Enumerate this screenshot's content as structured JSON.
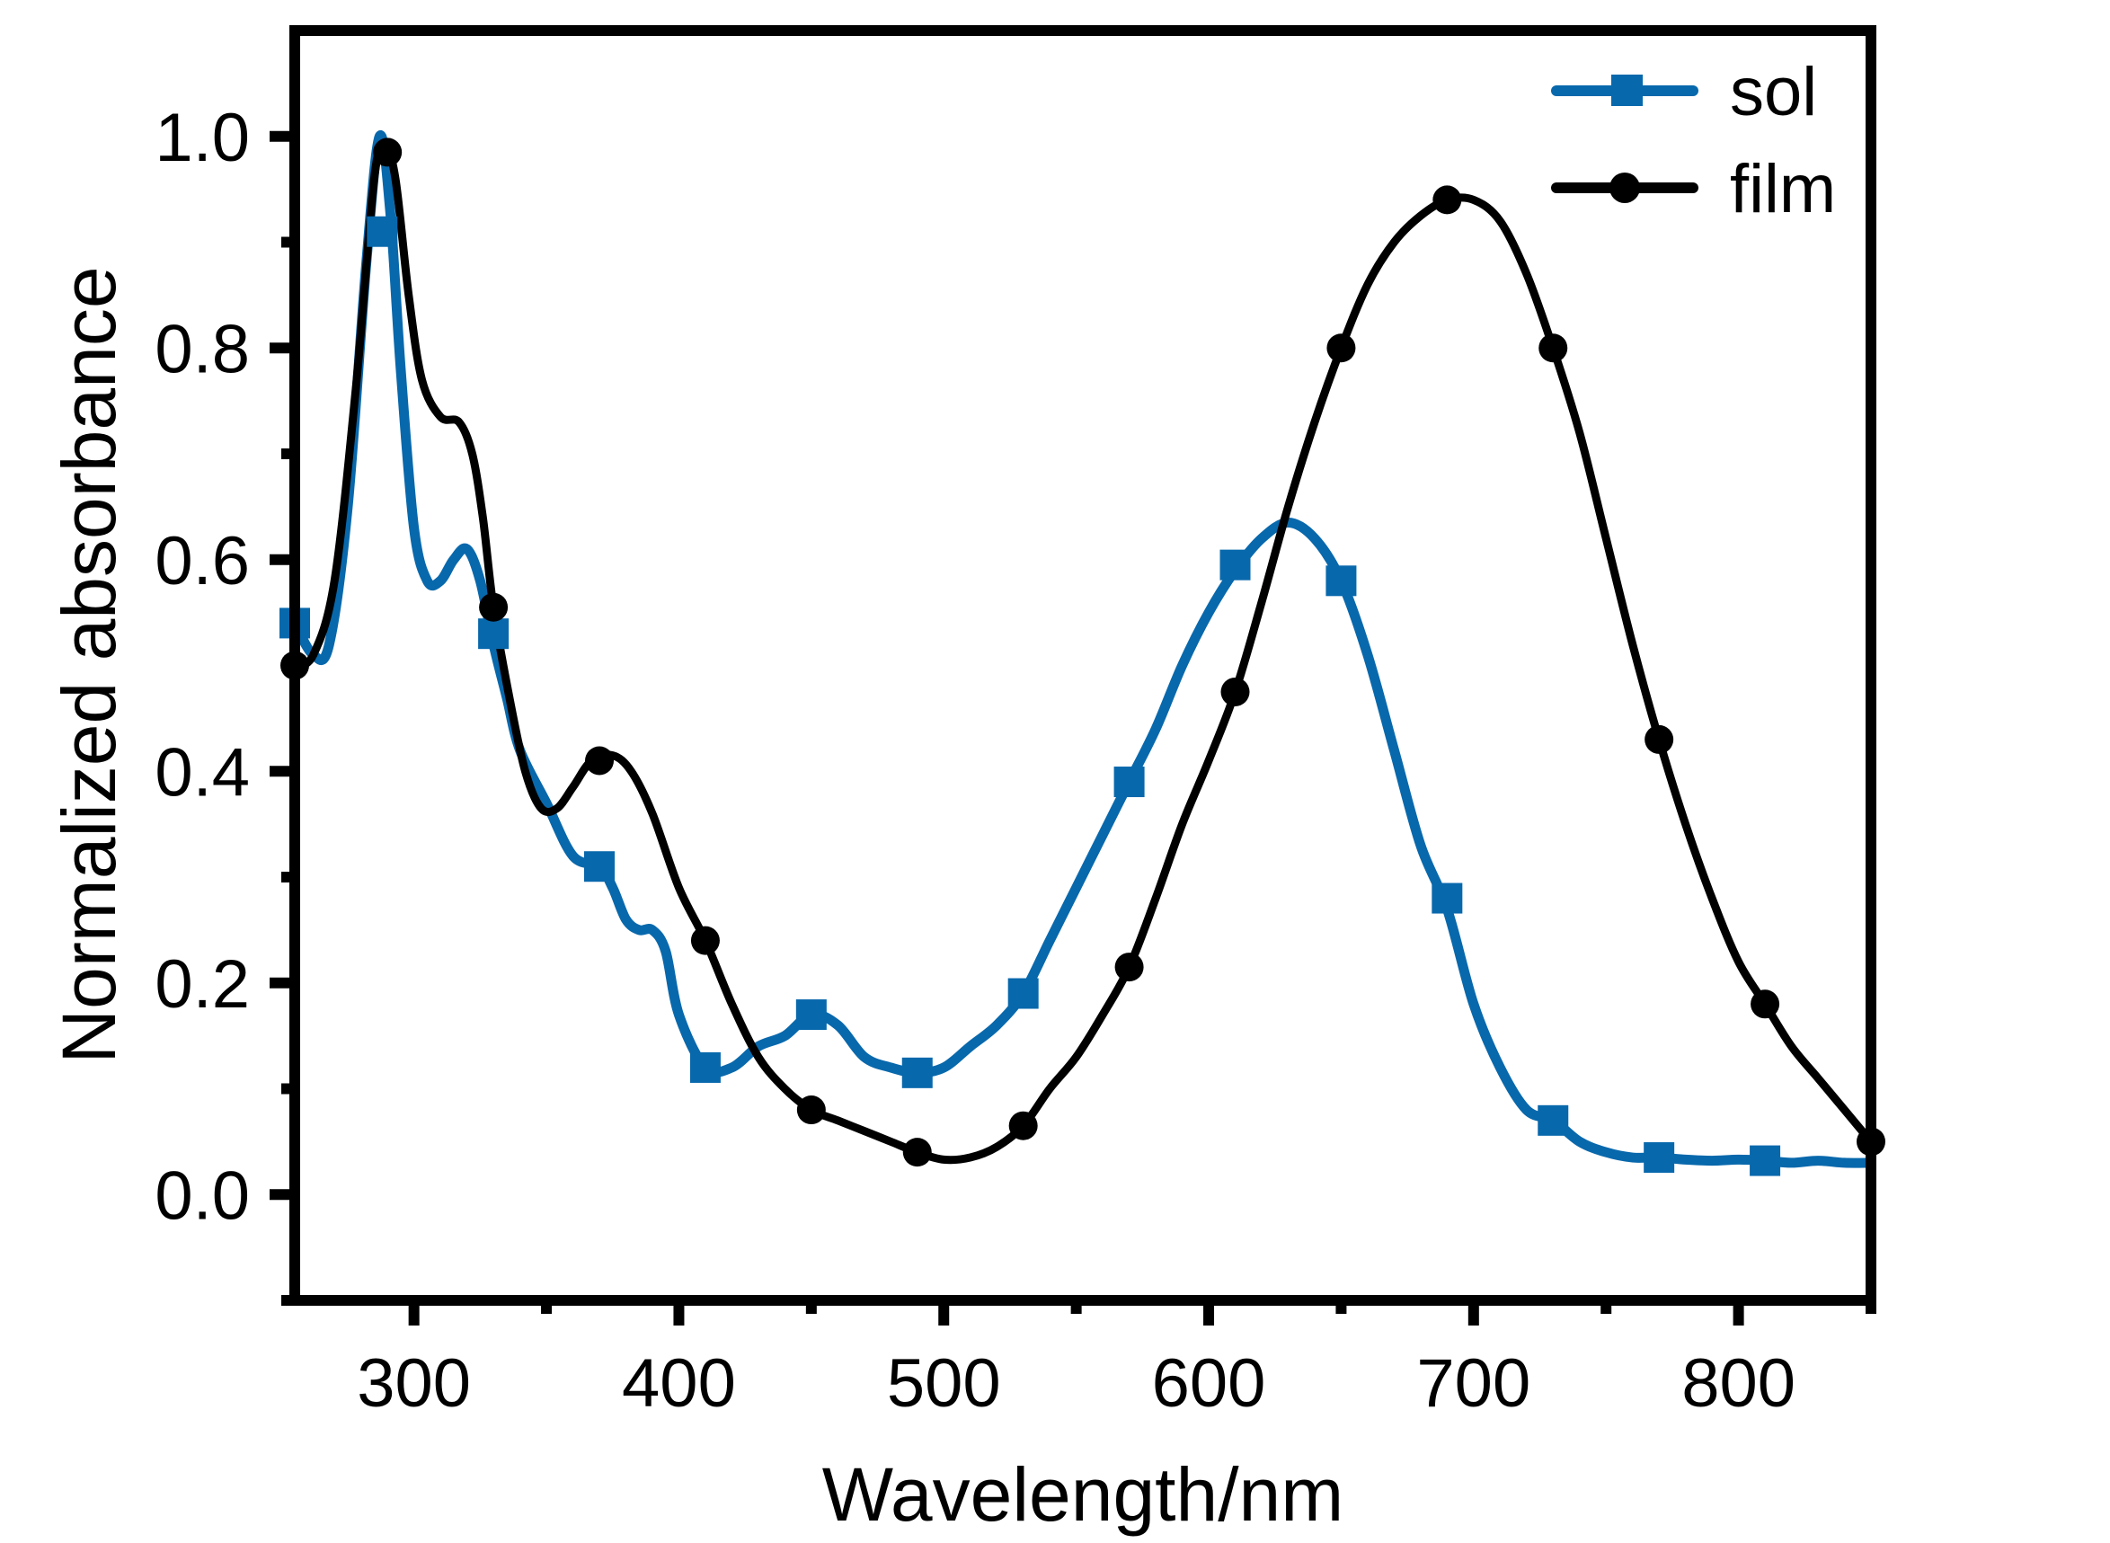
{
  "chart_data": {
    "type": "line",
    "title": "",
    "xlabel": "Wavelength/nm",
    "ylabel": "Normalized absorbance",
    "xlim": [
      255,
      850
    ],
    "ylim": [
      -0.1,
      1.1
    ],
    "xticks": [
      300,
      400,
      500,
      600,
      700,
      800
    ],
    "xtick_labels": [
      "300",
      "400",
      "500",
      "600",
      "700",
      "800"
    ],
    "xminor": [
      350,
      450,
      550,
      650,
      750,
      850
    ],
    "yticks": [
      0.0,
      0.2,
      0.4,
      0.6,
      0.8,
      1.0
    ],
    "ytick_labels": [
      "0.0",
      "0.2",
      "0.4",
      "0.6",
      "0.8",
      "1.0"
    ],
    "yminor": [
      -0.1,
      0.1,
      0.3,
      0.5,
      0.7,
      0.9
    ],
    "grid": false,
    "legend_position": "top-right",
    "series": [
      {
        "name": "sol",
        "color": "#0868AC",
        "marker": "square",
        "x": [
          255,
          262,
          268,
          275,
          282,
          287,
          291,
          295,
          300,
          305,
          310,
          315,
          320,
          325,
          330,
          335,
          340,
          350,
          360,
          370,
          375,
          380,
          385,
          390,
          395,
          400,
          410,
          420,
          430,
          440,
          450,
          460,
          470,
          480,
          490,
          500,
          510,
          520,
          530,
          540,
          550,
          560,
          570,
          580,
          590,
          600,
          610,
          620,
          630,
          640,
          650,
          660,
          670,
          680,
          690,
          700,
          710,
          720,
          730,
          740,
          750,
          760,
          770,
          780,
          790,
          800,
          810,
          820,
          830,
          840,
          850
        ],
        "y": [
          0.54,
          0.51,
          0.52,
          0.65,
          0.88,
          1.0,
          0.93,
          0.78,
          0.63,
          0.58,
          0.58,
          0.6,
          0.61,
          0.58,
          0.52,
          0.47,
          0.42,
          0.37,
          0.32,
          0.31,
          0.29,
          0.26,
          0.25,
          0.25,
          0.23,
          0.17,
          0.12,
          0.12,
          0.14,
          0.15,
          0.17,
          0.16,
          0.13,
          0.12,
          0.115,
          0.12,
          0.14,
          0.16,
          0.19,
          0.24,
          0.29,
          0.34,
          0.39,
          0.44,
          0.5,
          0.55,
          0.59,
          0.62,
          0.635,
          0.62,
          0.58,
          0.51,
          0.42,
          0.33,
          0.27,
          0.18,
          0.12,
          0.08,
          0.07,
          0.05,
          0.04,
          0.035,
          0.035,
          0.033,
          0.032,
          0.033,
          0.032,
          0.03,
          0.032,
          0.03,
          0.03
        ],
        "markers_x": [
          255,
          288,
          330,
          370,
          410,
          450,
          490,
          530,
          570,
          610,
          650,
          690,
          730,
          770,
          810
        ],
        "markers_y": [
          0.54,
          0.91,
          0.53,
          0.31,
          0.12,
          0.17,
          0.115,
          0.19,
          0.39,
          0.595,
          0.58,
          0.28,
          0.07,
          0.035,
          0.032
        ]
      },
      {
        "name": "film",
        "color": "#000000",
        "marker": "circle",
        "x": [
          255,
          262,
          270,
          278,
          285,
          289,
          293,
          298,
          303,
          310,
          317,
          322,
          326,
          330,
          336,
          342,
          348,
          354,
          360,
          367,
          375,
          382,
          390,
          400,
          410,
          420,
          430,
          440,
          450,
          460,
          470,
          480,
          490,
          500,
          510,
          520,
          530,
          540,
          550,
          560,
          570,
          580,
          590,
          600,
          610,
          620,
          630,
          640,
          650,
          660,
          670,
          680,
          690,
          700,
          710,
          720,
          730,
          740,
          750,
          760,
          770,
          780,
          790,
          800,
          810,
          820,
          830,
          840,
          850
        ],
        "y": [
          0.5,
          0.51,
          0.58,
          0.76,
          0.96,
          0.99,
          0.96,
          0.85,
          0.77,
          0.735,
          0.73,
          0.7,
          0.64,
          0.555,
          0.47,
          0.4,
          0.365,
          0.365,
          0.385,
          0.41,
          0.415,
          0.4,
          0.36,
          0.29,
          0.24,
          0.18,
          0.13,
          0.1,
          0.08,
          0.07,
          0.06,
          0.05,
          0.04,
          0.033,
          0.035,
          0.045,
          0.065,
          0.1,
          0.13,
          0.17,
          0.215,
          0.28,
          0.35,
          0.41,
          0.475,
          0.56,
          0.65,
          0.73,
          0.8,
          0.86,
          0.9,
          0.925,
          0.94,
          0.94,
          0.92,
          0.87,
          0.8,
          0.72,
          0.62,
          0.52,
          0.43,
          0.35,
          0.28,
          0.22,
          0.18,
          0.14,
          0.11,
          0.08,
          0.05
        ],
        "markers_x": [
          255,
          290,
          330,
          370,
          410,
          450,
          490,
          530,
          570,
          610,
          650,
          690,
          730,
          770,
          810,
          850
        ],
        "markers_y": [
          0.5,
          0.985,
          0.555,
          0.41,
          0.24,
          0.08,
          0.04,
          0.065,
          0.215,
          0.475,
          0.8,
          0.94,
          0.8,
          0.43,
          0.18,
          0.05
        ]
      }
    ]
  }
}
